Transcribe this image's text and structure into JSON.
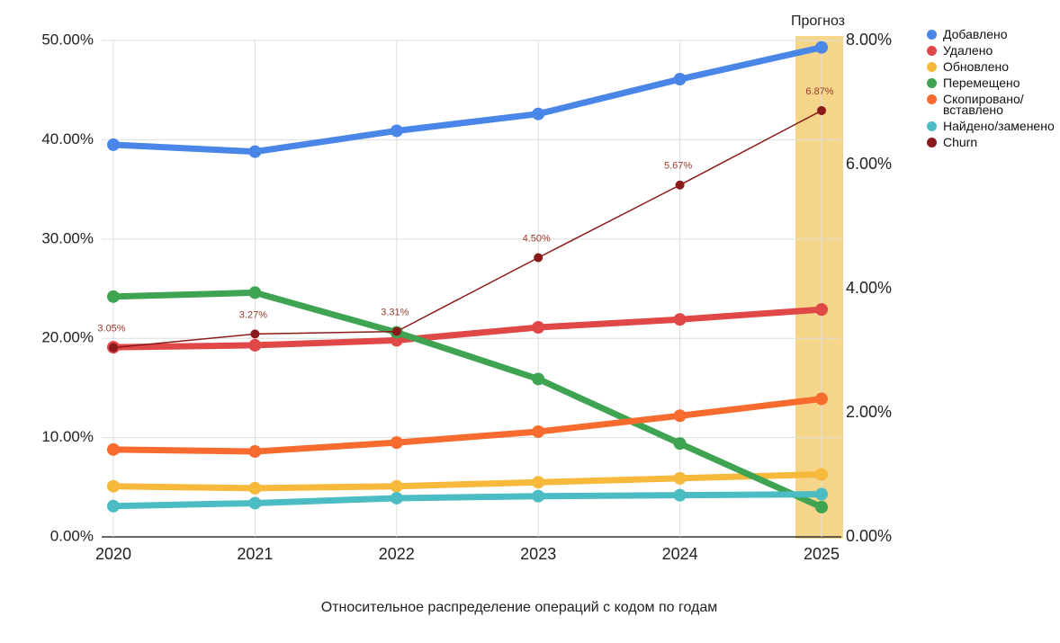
{
  "chart_data": {
    "type": "line",
    "title": "Относительное распределение операций с кодом по годам",
    "categories": [
      "2020",
      "2021",
      "2022",
      "2023",
      "2024",
      "2025"
    ],
    "ylim": [
      0,
      50
    ],
    "yticks": [
      {
        "value": 0,
        "label": "0.00%"
      },
      {
        "value": 10,
        "label": "10.00%"
      },
      {
        "value": 20,
        "label": "20.00%"
      },
      {
        "value": 30,
        "label": "30.00%"
      },
      {
        "value": 40,
        "label": "40.00%"
      },
      {
        "value": 50,
        "label": "50.00%"
      }
    ],
    "y2lim": [
      0,
      8
    ],
    "y2ticks": [
      {
        "value": 0,
        "label": "0.00%"
      },
      {
        "value": 2,
        "label": "2.00%"
      },
      {
        "value": 4,
        "label": "4.00%"
      },
      {
        "value": 6,
        "label": "6.00%"
      },
      {
        "value": 8,
        "label": "8.00%"
      }
    ],
    "grid": true,
    "legend": "right",
    "highlight": {
      "category": "2025",
      "label": "Прогноз",
      "color": "#f5d58a"
    },
    "series": [
      {
        "name": "Добавлено",
        "color": "#4a86e8",
        "values": [
          39.5,
          38.8,
          40.9,
          42.6,
          46.1,
          49.3
        ]
      },
      {
        "name": "Удалено",
        "color": "#e04848",
        "values": [
          19.1,
          19.3,
          19.8,
          21.1,
          21.9,
          22.9
        ]
      },
      {
        "name": "Обновлено",
        "color": "#f6b93b",
        "values": [
          5.1,
          4.9,
          5.1,
          5.5,
          5.9,
          6.3
        ]
      },
      {
        "name": "Перемещено",
        "color": "#3fa452",
        "values": [
          24.2,
          24.6,
          20.6,
          15.9,
          9.4,
          3.0
        ]
      },
      {
        "name": "Скопировано/ вставлено",
        "color": "#f76b2f",
        "values": [
          8.8,
          8.6,
          9.5,
          10.6,
          12.2,
          13.9
        ]
      },
      {
        "name": "Найдено/заменено",
        "color": "#4bbcc4",
        "values": [
          3.1,
          3.4,
          3.9,
          4.1,
          4.2,
          4.3
        ]
      },
      {
        "name": "Churn",
        "color": "#8b1a1a",
        "axis": "y2",
        "values": [
          3.05,
          3.27,
          3.31,
          4.5,
          5.67,
          6.87
        ],
        "value_labels": [
          "3.05%",
          "3.27%",
          "3.31%",
          "4.50%",
          "5.67%",
          "6.87%"
        ]
      }
    ]
  }
}
